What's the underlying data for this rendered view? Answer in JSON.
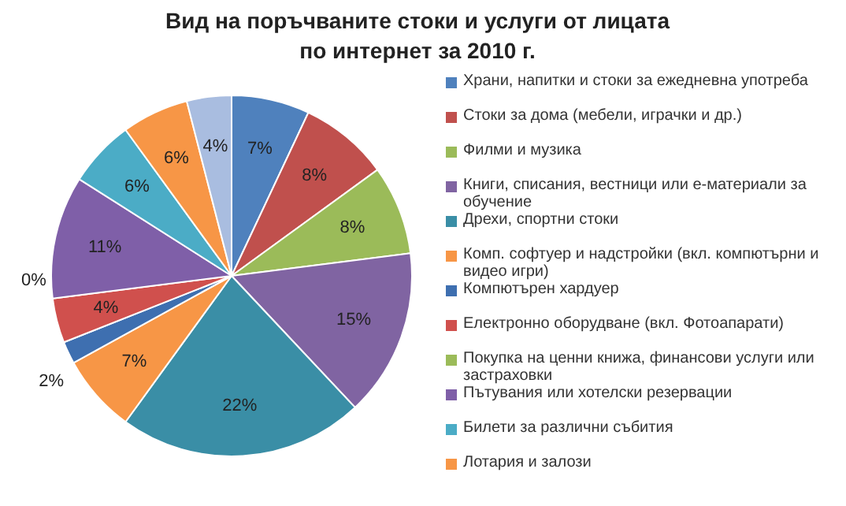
{
  "chart_data": {
    "type": "pie",
    "title": "Вид на поръчваните стоки и услуги от лицата по интернет за 2010 г.",
    "categories": [
      "Храни, напитки и стоки за ежедневна употреба",
      "Стоки за дома (мебели, играчки и др.)",
      "Филми и музика",
      "Книги, списания, вестници или е-материали за обучение",
      "Дрехи, спортни стоки",
      "Комп. софтуер и надстройки (вкл. компютърни и видео игри)",
      "Компютърен хардуер",
      "Електронно оборудване (вкл. Фотоапарати)",
      "Покупка на ценни книжа, финансови услуги или застраховки",
      "Пътувания или хотелски резервации",
      "Билети за различни събития",
      "Лотария и залози",
      null
    ],
    "values": [
      7,
      8,
      8,
      15,
      22,
      7,
      2,
      4,
      0,
      11,
      6,
      6,
      4
    ],
    "value_labels": [
      "7%",
      "8%",
      "8%",
      "15%",
      "22%",
      "7%",
      "2%",
      "4%",
      "0%",
      "11%",
      "6%",
      "6%",
      "4%"
    ],
    "colors": [
      "#4f81bd",
      "#c0504d",
      "#9bbb59",
      "#8064a2",
      "#3a8ea6",
      "#f79646",
      "#3e6fb0",
      "#d0504d",
      "#9bbb59",
      "#7f5fa8",
      "#4bacc6",
      "#f79646",
      "#a9bde0"
    ],
    "legend": "right"
  }
}
